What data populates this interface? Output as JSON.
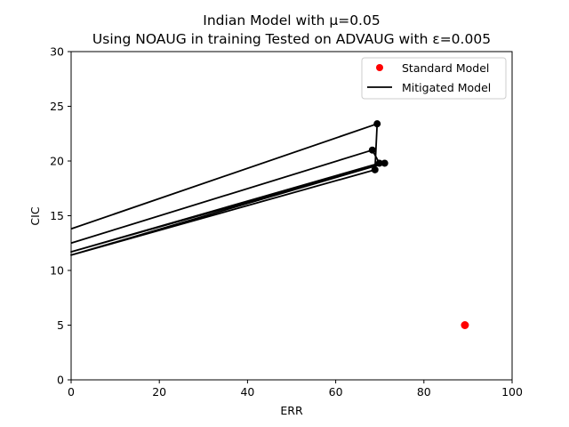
{
  "chart_data": {
    "type": "line",
    "title_line1": "Indian Model with μ=0.05",
    "title_line2": "Using NOAUG in training Tested on ADVAUG with ε=0.005",
    "xlabel": "ERR",
    "ylabel": "CIC",
    "xlim": [
      0,
      100
    ],
    "ylim": [
      0,
      30
    ],
    "xticks": [
      0,
      20,
      40,
      60,
      80,
      100
    ],
    "yticks": [
      0,
      5,
      10,
      15,
      20,
      25,
      30
    ],
    "grid": false,
    "legend_position": "top-right",
    "legend": [
      {
        "label": "Standard Model",
        "kind": "marker",
        "color": "#ff0000"
      },
      {
        "label": "Mitigated Model",
        "kind": "line",
        "color": "#000000"
      }
    ],
    "series": [
      {
        "name": "Standard Model",
        "type": "scatter",
        "color": "#ff0000",
        "points": [
          [
            89.3,
            5.0
          ]
        ]
      },
      {
        "name": "Mitigated Model",
        "type": "line",
        "color": "#000000",
        "x": [
          0,
          69.4,
          68.9,
          0,
          71.1,
          0,
          69.9,
          68.3,
          0
        ],
        "y": [
          13.8,
          23.4,
          19.2,
          11.4,
          19.8,
          11.7,
          19.8,
          21.0,
          12.5
        ],
        "markers": [
          [
            69.4,
            23.4
          ],
          [
            68.9,
            19.2
          ],
          [
            71.1,
            19.8
          ],
          [
            69.9,
            19.8
          ],
          [
            68.3,
            21.0
          ]
        ]
      }
    ]
  }
}
